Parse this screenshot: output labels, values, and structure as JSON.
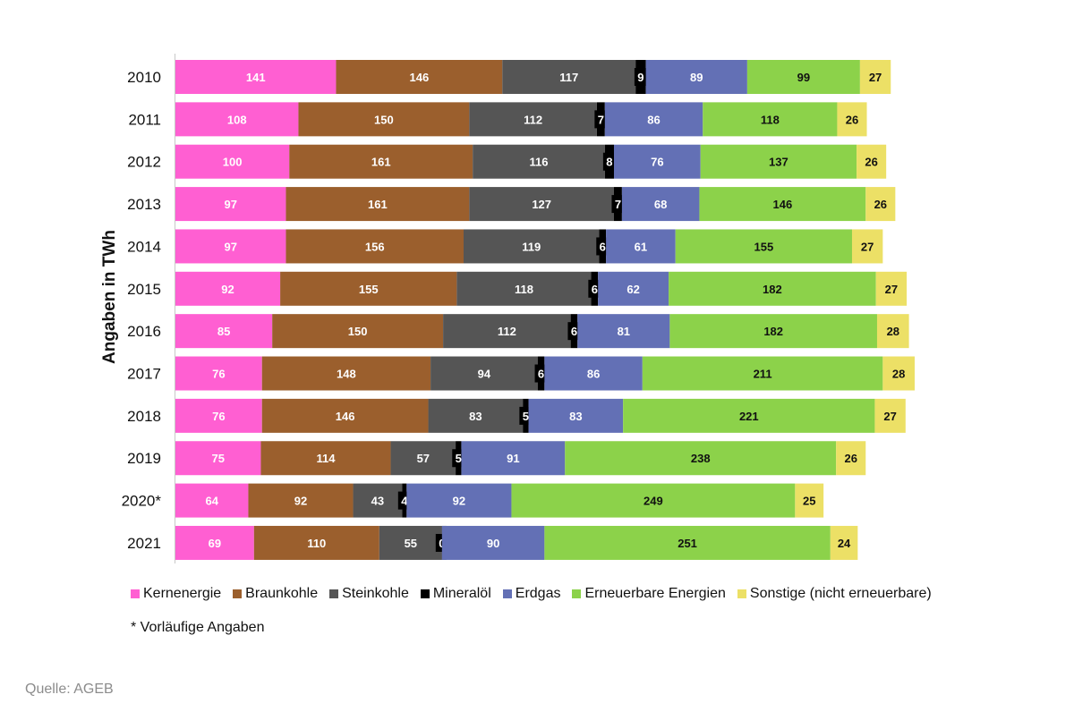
{
  "chart_data": {
    "type": "bar",
    "orientation": "horizontal",
    "stacked": true,
    "ylabel": "Angaben in  TWh",
    "categories": [
      "2010",
      "2011",
      "2012",
      "2013",
      "2014",
      "2015",
      "2016",
      "2017",
      "2018",
      "2019",
      "2020*",
      "2021"
    ],
    "series": [
      {
        "name": "Kernenergie",
        "color": "#ff5fd2",
        "values": [
          141,
          108,
          100,
          97,
          97,
          92,
          85,
          76,
          76,
          75,
          64,
          69
        ]
      },
      {
        "name": "Braunkohle",
        "color": "#9b5f2d",
        "values": [
          146,
          150,
          161,
          161,
          156,
          155,
          150,
          148,
          146,
          114,
          92,
          110
        ]
      },
      {
        "name": "Steinkohle",
        "color": "#555555",
        "values": [
          117,
          112,
          116,
          127,
          119,
          118,
          112,
          94,
          83,
          57,
          43,
          55
        ]
      },
      {
        "name": "Mineralöl",
        "color": "#000000",
        "values": [
          9,
          7,
          8,
          7,
          6,
          6,
          6,
          6,
          5,
          5,
          4,
          0
        ]
      },
      {
        "name": "Erdgas",
        "color": "#6370b5",
        "values": [
          89,
          86,
          76,
          68,
          61,
          62,
          81,
          86,
          83,
          91,
          92,
          90
        ]
      },
      {
        "name": "Erneuerbare Energien",
        "color": "#8cd24a",
        "values": [
          99,
          118,
          137,
          146,
          155,
          182,
          182,
          211,
          221,
          238,
          249,
          251
        ]
      },
      {
        "name": "Sonstige (nicht erneuerbare)",
        "color": "#ece066",
        "values": [
          27,
          26,
          26,
          26,
          27,
          27,
          28,
          28,
          27,
          26,
          25,
          24
        ]
      }
    ],
    "grid": false,
    "legend_position": "bottom"
  },
  "footnote": "* Vorläufige Angaben",
  "source": "Quelle: AGEB"
}
